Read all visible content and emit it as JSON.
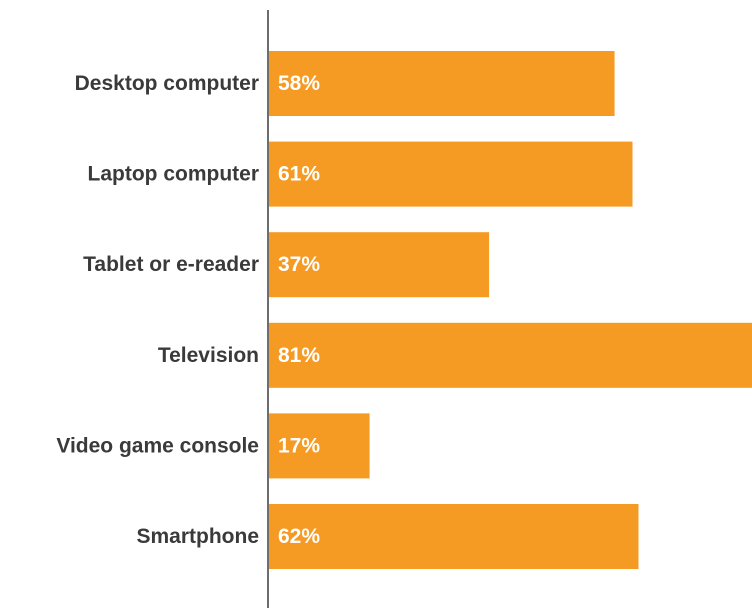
{
  "colors": {
    "bar": "#F59A23",
    "axis": "#6d6d6d",
    "category_text": "#3a3a3a",
    "value_text": "#ffffff"
  },
  "chart_data": {
    "type": "bar",
    "orientation": "horizontal",
    "categories": [
      "Desktop computer",
      "Laptop computer",
      "Tablet or e-reader",
      "Television",
      "Video game console",
      "Smartphone"
    ],
    "values": [
      58,
      61,
      37,
      81,
      17,
      62
    ],
    "value_labels": [
      "58%",
      "61%",
      "37%",
      "81%",
      "17%",
      "62%"
    ],
    "title": "",
    "xlabel": "",
    "ylabel": "",
    "xlim": [
      0,
      81
    ],
    "grid": false,
    "legend": "none"
  }
}
